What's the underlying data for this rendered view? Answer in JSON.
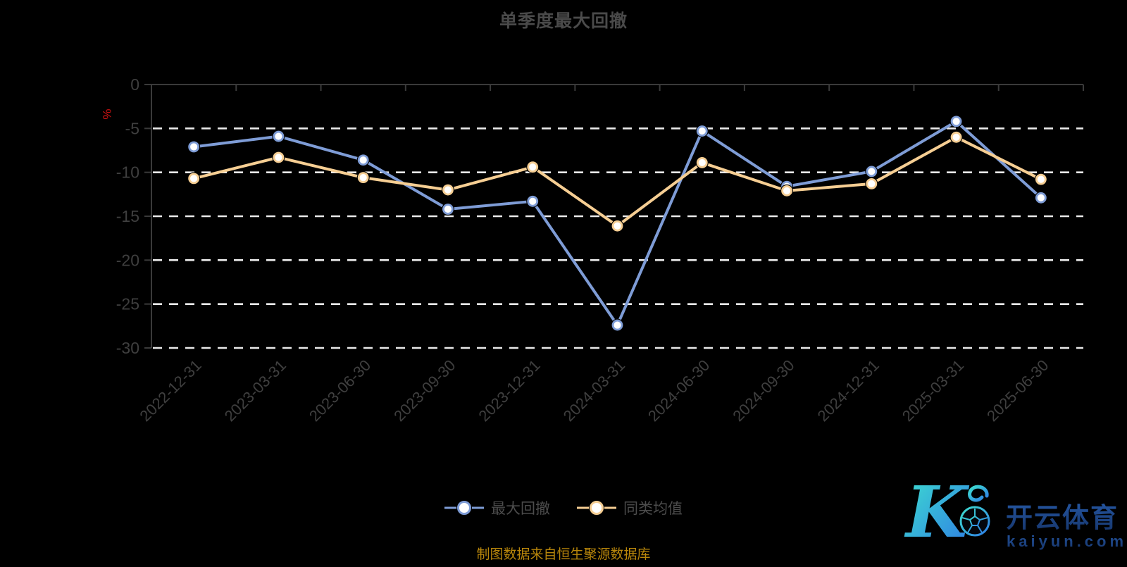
{
  "header": {
    "title": "单季度最大回撤"
  },
  "chart_data": {
    "type": "line",
    "title": "单季度最大回撤",
    "categories": [
      "2022-12-31",
      "2023-03-31",
      "2023-06-30",
      "2023-09-30",
      "2023-12-31",
      "2024-03-31",
      "2024-06-30",
      "2024-09-30",
      "2024-12-31",
      "2025-03-31",
      "2025-06-30"
    ],
    "series": [
      {
        "name": "最大回撤",
        "color": "#7e9cd6",
        "values": [
          -7.1,
          -5.9,
          -8.6,
          -14.2,
          -13.3,
          -27.4,
          -5.3,
          -11.6,
          -9.9,
          -4.2,
          -12.9
        ]
      },
      {
        "name": "同类均值",
        "color": "#f6ce93",
        "values": [
          -10.7,
          -8.3,
          -10.6,
          -12.0,
          -9.4,
          -16.1,
          -8.9,
          -12.1,
          -11.3,
          -6.0,
          -10.8
        ]
      }
    ],
    "xlabel": "",
    "ylabel": "%",
    "ylabel_color": "#d01212",
    "ylim": [
      -30,
      0
    ],
    "y_ticks": [
      0,
      -5,
      -10,
      -15,
      -20,
      -25,
      -30
    ],
    "grid": "horizontal dashed white",
    "legend_position": "bottom",
    "x_label_rotation": -45
  },
  "legend": {
    "items": [
      {
        "label": "最大回撤",
        "color": "#7e9cd6"
      },
      {
        "label": "同类均值",
        "color": "#f6ce93"
      }
    ]
  },
  "footer": {
    "source_text": "制图数据来自恒生聚源数据库",
    "color": "#b8860b"
  },
  "watermark": {
    "logo_letter": "K",
    "brand_cn": "开云体育",
    "brand_domain": "kaiyun.com",
    "navy": "#1d4077",
    "gradient": [
      "#3ee0cf",
      "#2e7be5"
    ]
  }
}
